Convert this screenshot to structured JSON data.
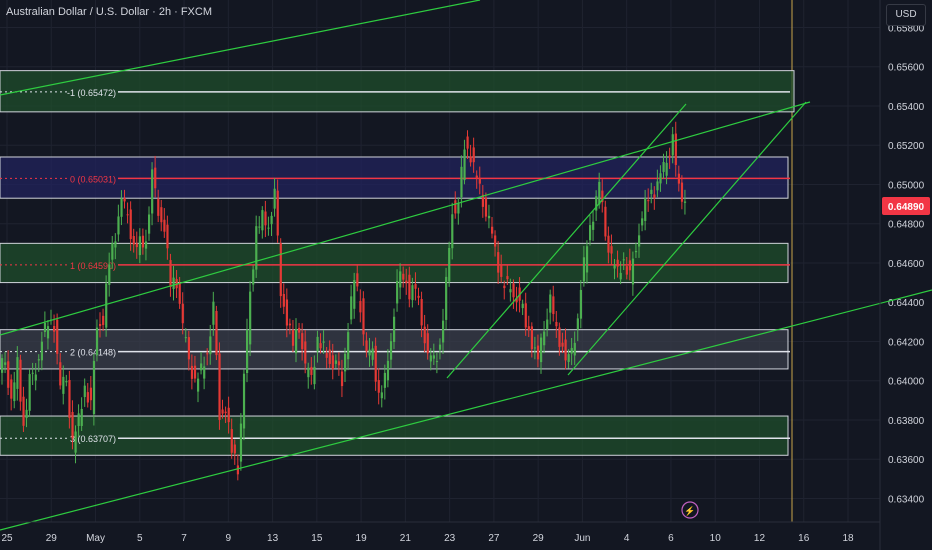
{
  "header": {
    "title": "Australian Dollar / U.S. Dollar · 2h · FXCM",
    "currency_label": "USD"
  },
  "price_tag": {
    "value": "0.64890",
    "price": 0.6489,
    "color": "#f23645"
  },
  "colors": {
    "background": "#131722",
    "grid": "#1f2330",
    "bull_candle": "#26a69a",
    "bear_candle": "#ef5350",
    "trend_line": "#2ecc40",
    "fib_line_white": "#e0e3eb",
    "fib_line_red": "#f23645",
    "zone_green": "#1f4d2b",
    "zone_blue": "#22235c",
    "zone_gray": "#3a3e4a",
    "current_date_line": "#c8a64a"
  },
  "chart_data": {
    "type": "candlestick",
    "symbol": "AUD/USD",
    "timeframe": "2h",
    "source": "FXCM",
    "y_axis": {
      "ticks": [
        "0.65800",
        "0.65600",
        "0.65400",
        "0.65200",
        "0.65000",
        "0.64800",
        "0.64600",
        "0.64400",
        "0.64200",
        "0.64000",
        "0.63800",
        "0.63600",
        "0.63400"
      ],
      "range": [
        0.6328,
        0.6594
      ]
    },
    "x_axis": {
      "ticks": [
        "25",
        "29",
        "May",
        "5",
        "7",
        "9",
        "13",
        "15",
        "19",
        "21",
        "23",
        "27",
        "29",
        "Jun",
        "4",
        "6",
        "10",
        "12",
        "16",
        "18"
      ]
    },
    "fib_levels": [
      {
        "label": "-1 (0.65472)",
        "price": 0.65472,
        "color": "white"
      },
      {
        "label": "0 (0.65031)",
        "price": 0.65031,
        "color": "red"
      },
      {
        "label": "1 (0.64590)",
        "price": 0.6459,
        "color": "red"
      },
      {
        "label": "2 (0.64148)",
        "price": 0.64148,
        "color": "white"
      },
      {
        "label": "3 (0.63707)",
        "price": 0.63707,
        "color": "white"
      }
    ],
    "zones": [
      {
        "top": 0.6558,
        "bottom": 0.6537,
        "color": "green"
      },
      {
        "top": 0.6514,
        "bottom": 0.6493,
        "color": "blue"
      },
      {
        "top": 0.647,
        "bottom": 0.645,
        "color": "green"
      },
      {
        "top": 0.6426,
        "bottom": 0.6406,
        "color": "gray"
      },
      {
        "top": 0.6382,
        "bottom": 0.6362,
        "color": "green"
      }
    ],
    "price_path": [
      [
        0.6404,
        0.6411
      ],
      [
        0.6387,
        0.6409
      ],
      [
        0.6377,
        0.64
      ],
      [
        0.6407,
        0.6421
      ],
      [
        0.643,
        0.6429
      ],
      [
        0.6395,
        0.6401
      ],
      [
        0.6367,
        0.638
      ],
      [
        0.6398,
        0.6387
      ],
      [
        0.6431,
        0.643
      ],
      [
        0.6461,
        0.6475
      ],
      [
        0.649,
        0.6485
      ],
      [
        0.6466,
        0.647
      ],
      [
        0.6472,
        0.6505
      ],
      [
        0.6488,
        0.6478
      ],
      [
        0.6449,
        0.6451
      ],
      [
        0.6426,
        0.6411
      ],
      [
        0.6398,
        0.6405
      ],
      [
        0.6415,
        0.6438
      ],
      [
        0.6384,
        0.6386
      ],
      [
        0.6364,
        0.6356
      ],
      [
        0.64,
        0.6445
      ],
      [
        0.6476,
        0.6483
      ],
      [
        0.648,
        0.6496
      ],
      [
        0.6447,
        0.6431
      ],
      [
        0.6418,
        0.6428
      ],
      [
        0.6405,
        0.6402
      ],
      [
        0.642,
        0.6416
      ],
      [
        0.6411,
        0.6409
      ],
      [
        0.6401,
        0.6428
      ],
      [
        0.6451,
        0.6438
      ],
      [
        0.6411,
        0.6415
      ],
      [
        0.6392,
        0.64
      ],
      [
        0.6423,
        0.645
      ],
      [
        0.6455,
        0.6445
      ],
      [
        0.6446,
        0.6431
      ],
      [
        0.641,
        0.6411
      ],
      [
        0.6417,
        0.6449
      ],
      [
        0.6488,
        0.649
      ],
      [
        0.6521,
        0.6515
      ],
      [
        0.6502,
        0.6491
      ],
      [
        0.648,
        0.6466
      ],
      [
        0.6452,
        0.6448
      ],
      [
        0.6446,
        0.6441
      ],
      [
        0.643,
        0.642
      ],
      [
        0.6409,
        0.6427
      ],
      [
        0.644,
        0.6425
      ],
      [
        0.6417,
        0.641
      ],
      [
        0.6423,
        0.6447
      ],
      [
        0.6471,
        0.6485
      ],
      [
        0.6499,
        0.6475
      ],
      [
        0.6461,
        0.6455
      ],
      [
        0.6462,
        0.6453
      ],
      [
        0.647,
        0.6484
      ],
      [
        0.6494,
        0.6497
      ],
      [
        0.6503,
        0.6512
      ],
      [
        0.6522,
        0.6497
      ],
      [
        0.6492,
        0.6489
      ]
    ],
    "x_span": [
      0,
      710
    ],
    "current_date_index": 792
  }
}
